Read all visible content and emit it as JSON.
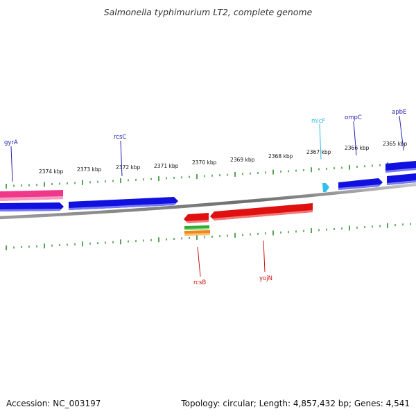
{
  "title": "Salmonella typhimurium LT2, complete genome",
  "footer": {
    "accession": "Accession: NC_003197",
    "summary": "Topology: circular; Length: 4,857,432 bp; Genes: 4,541"
  },
  "colors": {
    "tick": "#2e8b2e",
    "backbone": "#7f7f7f",
    "forward_gene": "#1010e0",
    "reverse_gene": "#e01010",
    "pink_gene": "#f0388a",
    "rna_gene": "#30c0f0",
    "green_gene": "#30b030",
    "orange_gene": "#f08a10"
  },
  "scale_labels": [
    "2374 kbp",
    "2373 kbp",
    "2372 kbp",
    "2371 kbp",
    "2370 kbp",
    "2369 kbp",
    "2368 kbp",
    "2367 kbp",
    "2366 kbp",
    "2365 kbp"
  ],
  "gene_labels": [
    {
      "text": "gyrA",
      "color": "#2020b0"
    },
    {
      "text": "rcsC",
      "color": "#2020b0"
    },
    {
      "text": "micF",
      "color": "#30b8e8"
    },
    {
      "text": "ompC",
      "color": "#2020b0"
    },
    {
      "text": "apbE",
      "color": "#2020b0"
    },
    {
      "text": "rcsB",
      "color": "#d01010"
    },
    {
      "text": "yojN",
      "color": "#d01010"
    }
  ]
}
